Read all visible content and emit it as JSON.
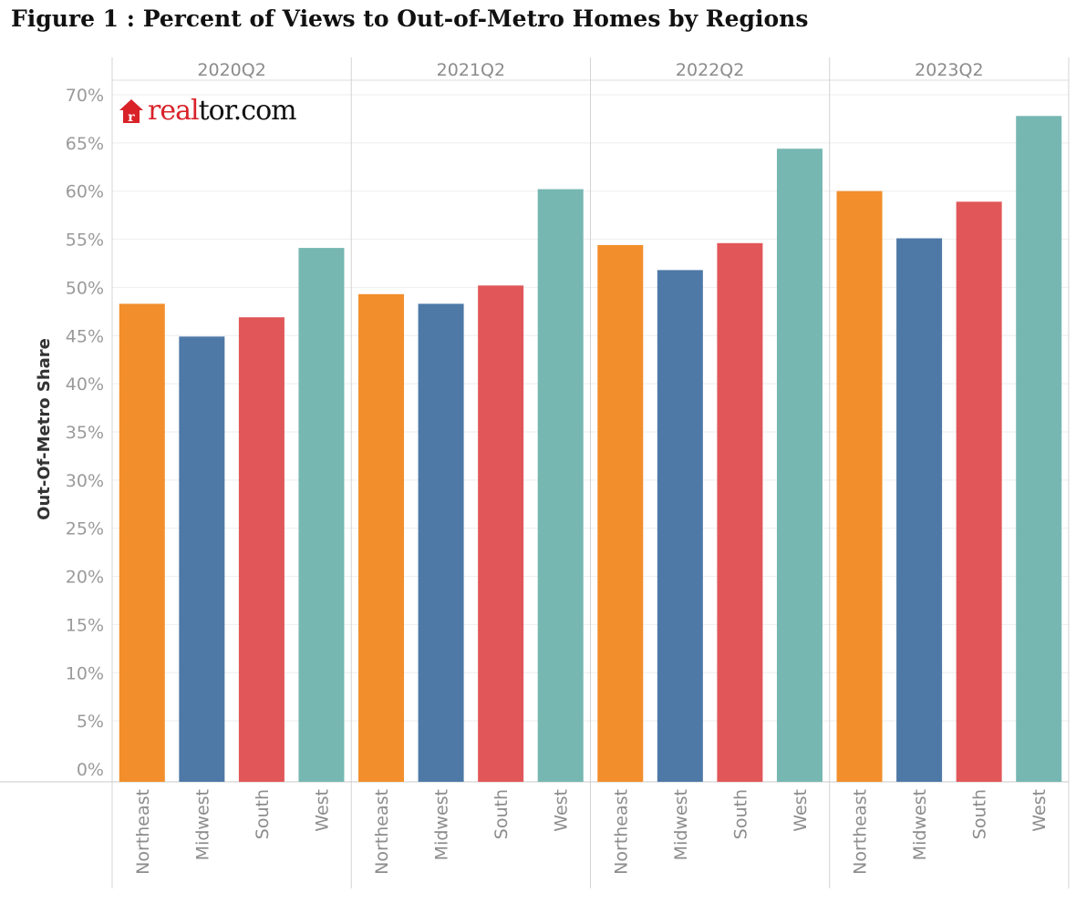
{
  "figure_title": "Figure 1 : Percent of Views to Out-of-Metro Homes by Regions",
  "logo": {
    "brand": "real",
    "rest": "tor.com",
    "icon": "house-logo-icon",
    "color": "#d92228"
  },
  "colors": {
    "Northeast": "#f28e2b",
    "Midwest": "#4e79a7",
    "South": "#e15759",
    "West": "#76b7b2"
  },
  "chart_data": {
    "type": "bar",
    "title": "Figure 1 : Percent of Views to Out-of-Metro Homes by Regions",
    "ylabel": "Out-Of-Metro Share",
    "xlabel": "",
    "ylim": [
      0,
      70
    ],
    "yticks": [
      "0%",
      "5%",
      "10%",
      "15%",
      "20%",
      "25%",
      "30%",
      "35%",
      "40%",
      "45%",
      "50%",
      "55%",
      "60%",
      "65%",
      "70%"
    ],
    "grid": true,
    "panels": [
      "2020Q2",
      "2021Q2",
      "2022Q2",
      "2023Q2"
    ],
    "categories": [
      "Northeast",
      "Midwest",
      "South",
      "West"
    ],
    "series": [
      {
        "panel": "2020Q2",
        "values": [
          48.3,
          44.9,
          46.9,
          54.1
        ]
      },
      {
        "panel": "2021Q2",
        "values": [
          49.3,
          48.3,
          50.2,
          60.2
        ]
      },
      {
        "panel": "2022Q2",
        "values": [
          54.4,
          51.8,
          54.6,
          64.4
        ]
      },
      {
        "panel": "2023Q2",
        "values": [
          60.0,
          55.1,
          58.9,
          67.8
        ]
      }
    ]
  }
}
